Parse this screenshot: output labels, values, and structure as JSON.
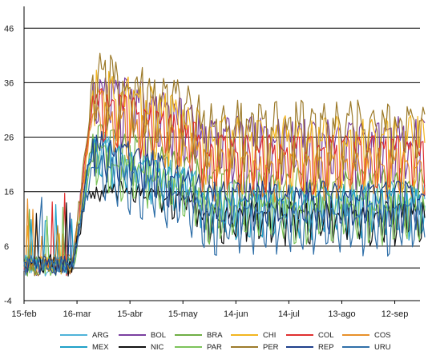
{
  "chart_data": {
    "type": "line",
    "title": "",
    "xlabel": "",
    "ylabel": "",
    "x_start": "2020-02-15",
    "x_end": "2020-09-29",
    "x_ticks": [
      {
        "label": "15-feb",
        "date": "2020-02-15"
      },
      {
        "label": "16-mar",
        "date": "2020-03-16"
      },
      {
        "label": "15-abr",
        "date": "2020-04-15"
      },
      {
        "label": "15-may",
        "date": "2020-05-15"
      },
      {
        "label": "14-jun",
        "date": "2020-06-14"
      },
      {
        "label": "14-jul",
        "date": "2020-07-14"
      },
      {
        "label": "13-ago",
        "date": "2020-08-13"
      },
      {
        "label": "12-sep",
        "date": "2020-09-12"
      }
    ],
    "y_ticks": [
      -4,
      6,
      16,
      26,
      36,
      46
    ],
    "ylim": [
      -4,
      50
    ],
    "grid": "horizontal",
    "legend_position": "bottom",
    "series": [
      {
        "name": "ARG",
        "color": "#4fb3d9",
        "base": 14,
        "amp": 4,
        "noise": 2
      },
      {
        "name": "BOL",
        "color": "#7a3fa0",
        "base": 24,
        "amp": 6,
        "noise": 3
      },
      {
        "name": "BRA",
        "color": "#6fae45",
        "base": 16,
        "amp": 5,
        "noise": 2
      },
      {
        "name": "CHI",
        "color": "#f2b51f",
        "base": 24,
        "amp": 6,
        "noise": 3
      },
      {
        "name": "COL",
        "color": "#e02f2f",
        "base": 22,
        "amp": 5,
        "noise": 2
      },
      {
        "name": "COS",
        "color": "#e8902a",
        "base": 20,
        "amp": 4,
        "noise": 2
      },
      {
        "name": "MEX",
        "color": "#1fa0c8",
        "base": 13,
        "amp": 4,
        "noise": 2
      },
      {
        "name": "NIC",
        "color": "#111111",
        "base": 11,
        "amp": 3,
        "noise": 2
      },
      {
        "name": "PAR",
        "color": "#7cc35a",
        "base": 12,
        "amp": 4,
        "noise": 2
      },
      {
        "name": "PER",
        "color": "#9c7a2a",
        "base": 27,
        "amp": 6,
        "noise": 3
      },
      {
        "name": "REP",
        "color": "#1e3f8a",
        "base": 14,
        "amp": 4,
        "noise": 2
      },
      {
        "name": "URU",
        "color": "#2f6fa8",
        "base": 10,
        "amp": 4,
        "noise": 2
      }
    ],
    "legend_rows": [
      [
        "ARG",
        "BOL",
        "BRA",
        "CHI",
        "COL",
        "COS"
      ],
      [
        "MEX",
        "NIC",
        "PAR",
        "PER",
        "REP",
        "URU"
      ]
    ]
  }
}
